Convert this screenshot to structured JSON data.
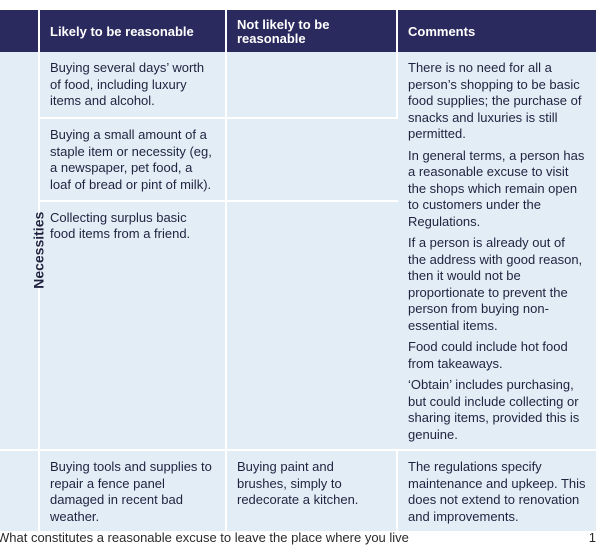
{
  "table": {
    "headers": {
      "col1": "Likely to be reasonable",
      "col2": "Not likely to be reasonable",
      "col3": "Comments"
    },
    "section_label": "Necessities",
    "rows": [
      {
        "likely": "Buying several days’ worth of food, including luxury items and alcohol.",
        "not_likely": ""
      },
      {
        "likely": "Buying a small amount of a staple item or necessity (eg, a newspaper, pet food, a loaf of bread or pint of milk).",
        "not_likely": ""
      },
      {
        "likely": "Collecting surplus basic food items from a friend.",
        "not_likely": ""
      }
    ],
    "comments_block": [
      "There is no need for all a person’s shopping to be basic food supplies; the purchase of snacks and luxuries is still permitted.",
      "In general terms, a person has a reasonable excuse to visit the shops which remain open to customers under the Regulations.",
      "If a person is already out of the address with good reason, then it would not be proportionate to prevent the person from buying non-essential items.",
      "Food could include hot food from takeaways.",
      "‘Obtain’ includes purchasing, but could include collecting or sharing items, provided this is genuine."
    ],
    "last_row": {
      "likely": "Buying tools and supplies to repair a fence panel damaged in recent bad weather.",
      "not_likely": "Buying paint and brushes, simply to redecorate a kitchen.",
      "comments": "The regulations specify maintenance and upkeep. This does not extend to renovation and improvements."
    }
  },
  "footer": {
    "text": "What constitutes a reasonable excuse to leave the place where you live",
    "page_number": "1"
  }
}
